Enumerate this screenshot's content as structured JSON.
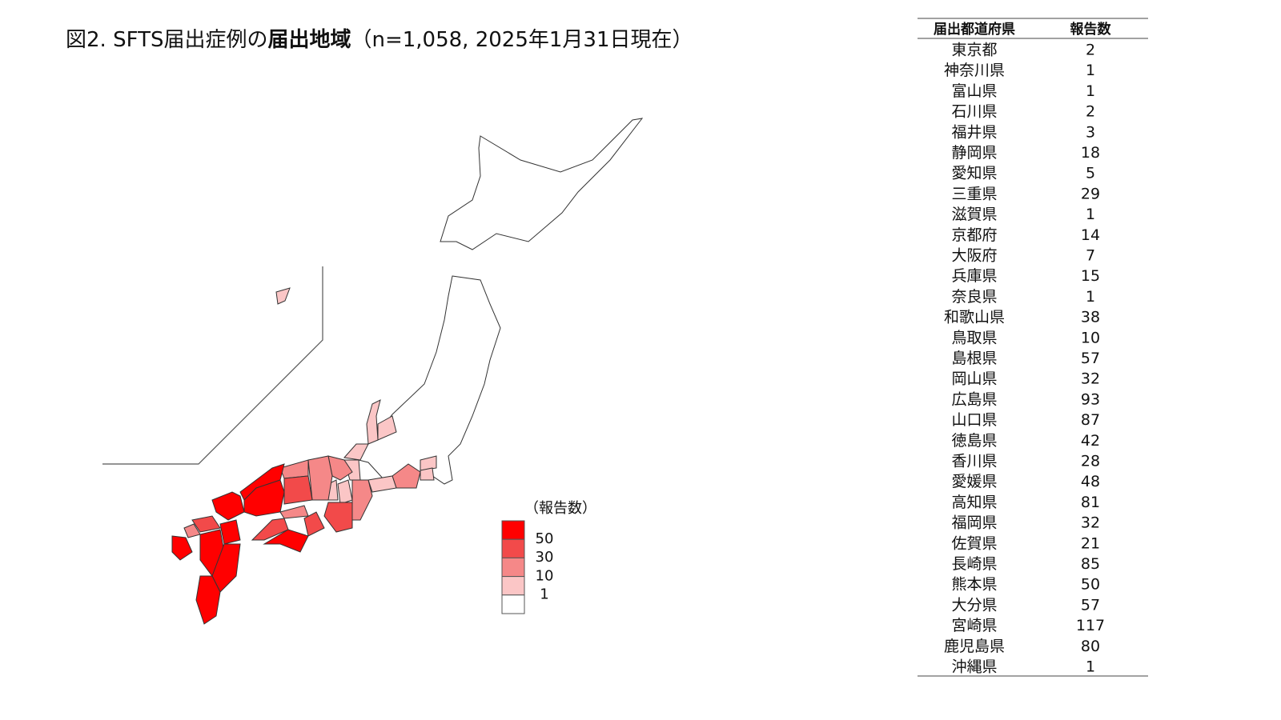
{
  "header": {
    "title_parts": [
      {
        "text": "図2.  SFTS届出症例の",
        "bold": false
      },
      {
        "text": "届出地域",
        "bold": true
      },
      {
        "text": "（n=1,058, 2025年1月31日現在）",
        "bold": false
      }
    ]
  },
  "legend": {
    "title": "（報告数）",
    "breaks": [
      50,
      30,
      10,
      1
    ],
    "colors": [
      "#ff0000",
      "#f24a4a",
      "#f58888",
      "#fbc6c6",
      "#ffffff"
    ]
  },
  "table": {
    "columns": [
      "届出都道府県",
      "報告数"
    ],
    "rows": [
      [
        "東京都",
        2
      ],
      [
        "神奈川県",
        1
      ],
      [
        "富山県",
        1
      ],
      [
        "石川県",
        2
      ],
      [
        "福井県",
        3
      ],
      [
        "静岡県",
        18
      ],
      [
        "愛知県",
        5
      ],
      [
        "三重県",
        29
      ],
      [
        "滋賀県",
        1
      ],
      [
        "京都府",
        14
      ],
      [
        "大阪府",
        7
      ],
      [
        "兵庫県",
        15
      ],
      [
        "奈良県",
        1
      ],
      [
        "和歌山県",
        38
      ],
      [
        "鳥取県",
        10
      ],
      [
        "島根県",
        57
      ],
      [
        "岡山県",
        32
      ],
      [
        "広島県",
        93
      ],
      [
        "山口県",
        87
      ],
      [
        "徳島県",
        42
      ],
      [
        "香川県",
        28
      ],
      [
        "愛媛県",
        48
      ],
      [
        "高知県",
        81
      ],
      [
        "福岡県",
        32
      ],
      [
        "佐賀県",
        21
      ],
      [
        "長崎県",
        85
      ],
      [
        "熊本県",
        50
      ],
      [
        "大分県",
        57
      ],
      [
        "宮崎県",
        117
      ],
      [
        "鹿児島県",
        80
      ],
      [
        "沖縄県",
        1
      ]
    ]
  }
}
